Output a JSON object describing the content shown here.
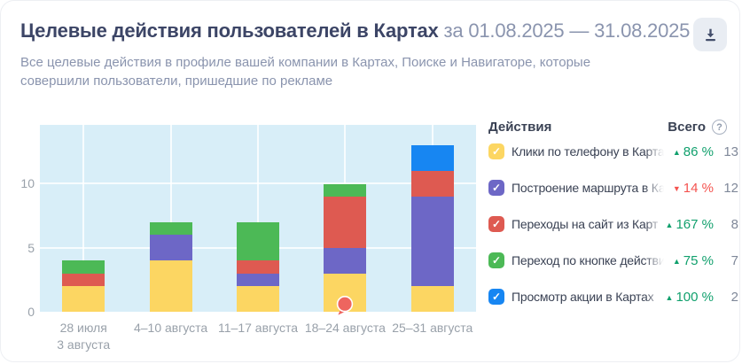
{
  "header": {
    "title": "Целевые действия пользователей в Картах",
    "period": "за 01.08.2025 — 31.08.2025",
    "subtitle": "Все целевые действия в профиле вашей компании в Картах, Поиске и Навигаторе, которые совершили пользователи, пришедшие по рекламе"
  },
  "toolbar": {
    "download_icon": "download-icon"
  },
  "colors": {
    "title": "#3C4566",
    "text": "#3A4254",
    "muted": "#8A94AE",
    "axis": "#99A1AA",
    "number": "#7F8899",
    "trend_up": "#11A06D",
    "trend_down": "#F4534F",
    "plot_background": "#D8EEF8",
    "icon": "#434E6B"
  },
  "chart_data": {
    "type": "bar",
    "stacked": true,
    "title": "Целевые действия пользователей в Картах",
    "categories": [
      "28 июля\n3 августа",
      "4–10 августа",
      "11–17 августа",
      "18–24 августа",
      "25–31 августа"
    ],
    "series": [
      {
        "name": "Клики по телефону в Картах",
        "color": "#FCD662",
        "values": [
          2,
          4,
          2,
          3,
          2
        ],
        "total": 13,
        "change": "86 %",
        "direction": "up"
      },
      {
        "name": "Построение маршрута в Картах",
        "color": "#6D67C6",
        "values": [
          0,
          2,
          1,
          2,
          7
        ],
        "total": 12,
        "change": "14 %",
        "direction": "down"
      },
      {
        "name": "Переходы на сайт из Карт",
        "color": "#DE5A51",
        "values": [
          1,
          0,
          1,
          4,
          2
        ],
        "total": 8,
        "change": "167 %",
        "direction": "up"
      },
      {
        "name": "Переход по кнопке действия из Карт",
        "color": "#4CB956",
        "values": [
          1,
          1,
          3,
          1,
          0
        ],
        "total": 7,
        "change": "75 %",
        "direction": "up"
      },
      {
        "name": "Просмотр акции в Картах",
        "color": "#1786F2",
        "values": [
          0,
          0,
          0,
          0,
          2
        ],
        "total": 2,
        "change": "100 %",
        "direction": "up"
      }
    ],
    "yticks": [
      0,
      5,
      10
    ],
    "ylim": [
      0,
      14.6
    ],
    "grid": true,
    "legend_position": "right",
    "marker": {
      "category_index": 3,
      "position": "bottom",
      "color": "#EE655F"
    }
  },
  "legend": {
    "header_actions": "Действия",
    "header_total": "Всего",
    "help_icon": "?"
  }
}
